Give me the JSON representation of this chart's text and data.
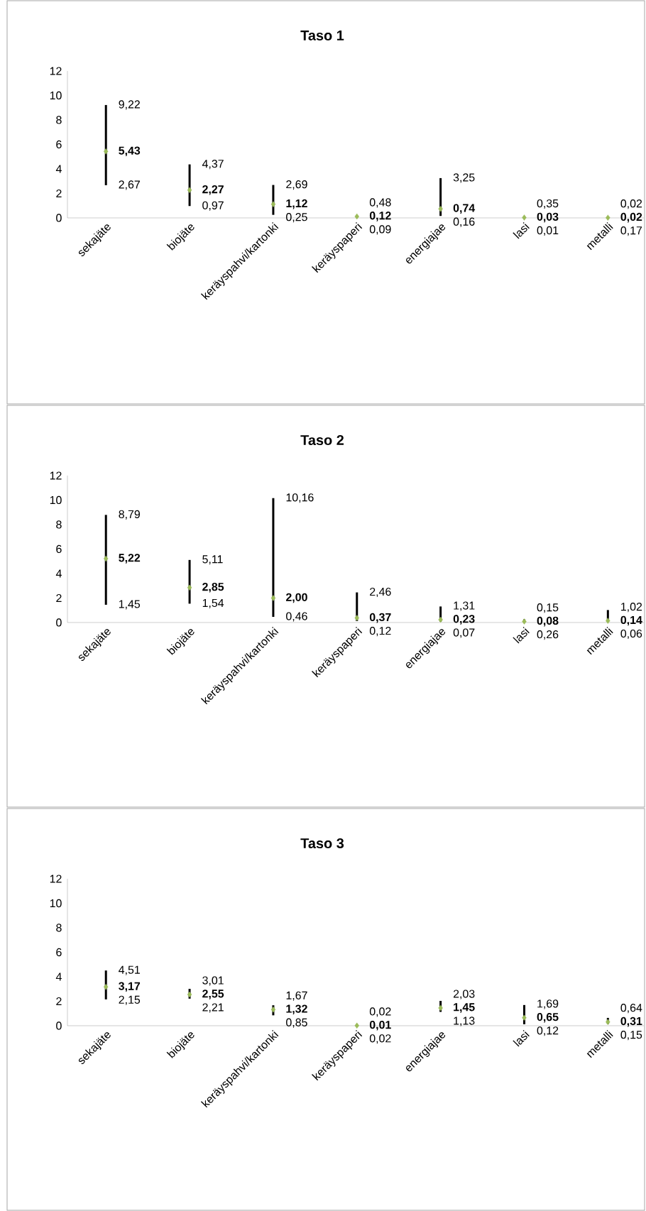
{
  "chart_data": [
    {
      "type": "scatter",
      "title": "Taso 1",
      "categories": [
        "sekajäte",
        "biojäte",
        "keräyspahvi/kartonki",
        "keräyspaperi",
        "energiajae",
        "lasi",
        "metalli"
      ],
      "values": [
        5.43,
        2.27,
        1.12,
        0.12,
        0.74,
        0.03,
        0.02
      ],
      "value_labels": [
        "5,43",
        "2,27",
        "1,12",
        "0,12",
        "0,74",
        "0,03",
        "0,02"
      ],
      "errors": [
        [
          2.67,
          9.22
        ],
        [
          0.97,
          4.37
        ],
        [
          0.25,
          2.69
        ],
        null,
        [
          0.16,
          3.25
        ],
        null,
        null
      ],
      "color": "#9bbb59",
      "marker": "diamond",
      "ylim": [
        0,
        12
      ],
      "yticks": [
        0,
        2,
        4,
        6,
        8,
        10,
        12
      ],
      "annotations": [
        "9,22",
        "2,67",
        "4,37",
        "0,97",
        "2,69",
        "0,25",
        "0,48",
        "0,09",
        "3,25",
        "0,16",
        "0,35",
        "0,01",
        "0,02",
        "0,17"
      ]
    },
    {
      "type": "scatter",
      "title": "Taso 2",
      "categories": [
        "sekajäte",
        "biojäte",
        "keräyspahvi/kartonki",
        "keräyspaperi",
        "energiajae",
        "lasi",
        "metalli"
      ],
      "values": [
        5.22,
        2.85,
        2.0,
        0.37,
        0.23,
        0.08,
        0.14
      ],
      "value_labels": [
        "5,22",
        "2,85",
        "2,00",
        "0,37",
        "0,23",
        "0,08",
        "0,14"
      ],
      "errors": [
        [
          1.45,
          8.79
        ],
        [
          1.54,
          5.11
        ],
        [
          0.46,
          10.16
        ],
        [
          0.12,
          2.46
        ],
        [
          0.07,
          1.31
        ],
        [
          0.15,
          0.26
        ],
        [
          0.06,
          1.02
        ]
      ],
      "color": "#9bbb59",
      "marker": "diamond",
      "ylim": [
        0,
        12
      ],
      "yticks": [
        0,
        2,
        4,
        6,
        8,
        10,
        12
      ],
      "annotations": [
        "8,79",
        "1,45",
        "5,11",
        "1,54",
        "10,16",
        "0,46",
        "2,46",
        "0,12",
        "1,31",
        "0,07",
        "0,15",
        "0,26",
        "1,02",
        "0,06"
      ]
    },
    {
      "type": "scatter",
      "title": "Taso 3",
      "categories": [
        "sekajäte",
        "biojäte",
        "keräyspahvi/kartonki",
        "keräyspaperi",
        "energiajae",
        "lasi",
        "metalli"
      ],
      "values": [
        3.17,
        2.55,
        1.32,
        0.01,
        1.45,
        0.65,
        0.31
      ],
      "value_labels": [
        "3,17",
        "2,55",
        "1,32",
        "0,01",
        "1,45",
        "0,65",
        "0,31"
      ],
      "errors": [
        [
          2.15,
          4.51
        ],
        [
          2.21,
          3.01
        ],
        [
          0.85,
          1.67
        ],
        [
          0.02,
          0.02
        ],
        [
          1.13,
          2.03
        ],
        [
          0.12,
          1.69
        ],
        [
          0.15,
          0.64
        ]
      ],
      "color": "#9bbb59",
      "marker": "diamond",
      "ylim": [
        0,
        12
      ],
      "yticks": [
        0,
        2,
        4,
        6,
        8,
        10,
        12
      ],
      "annotations": [
        "4,51",
        "2,15",
        "3,01",
        "2,21",
        "1,67",
        "0,85",
        "0,02",
        "0,02",
        "2,03",
        "1,13",
        "1,69",
        "0,12",
        "0,64",
        "0,15"
      ]
    }
  ]
}
